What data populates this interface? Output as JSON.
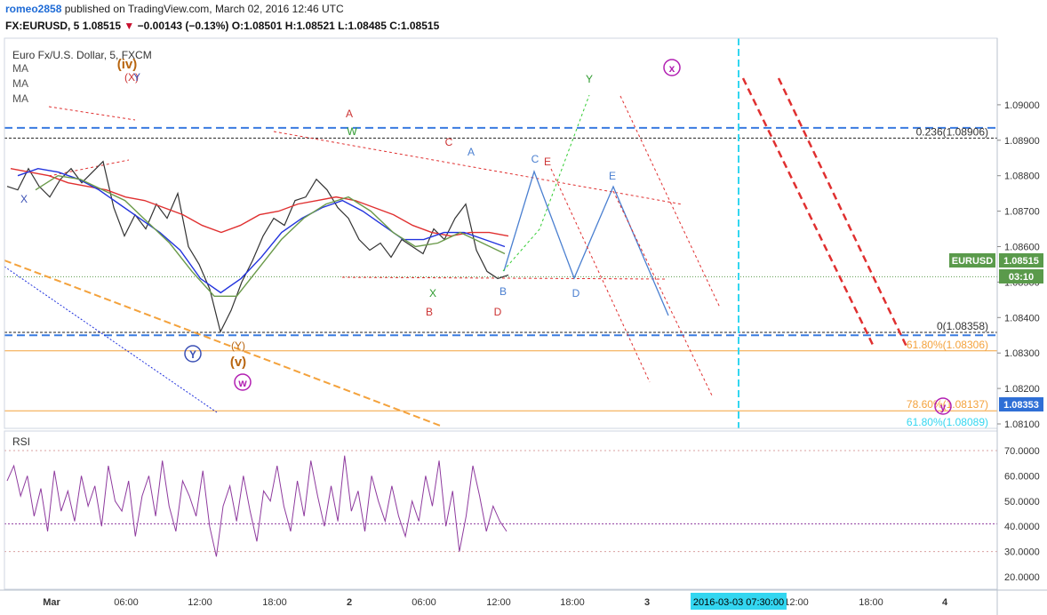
{
  "header": {
    "author": "romeo2858",
    "published_text": "published on TradingView.com, March 02, 2016 12:46 UTC",
    "symbol_line": "FX:EURUSD, 5",
    "last_price": "1.08515",
    "change": "−0.00143 (−0.13%)",
    "ohlc": "O:1.08501 H:1.08521 L:1.08485 C:1.08515"
  },
  "chart_data": [
    {
      "type": "line",
      "title": "Euro Fx/U.S. Dollar, 5, FXCM",
      "indicators": [
        "MA",
        "MA",
        "MA"
      ],
      "ylim": [
        1.081,
        1.091
      ],
      "y_ticks": [
        "1.09000",
        "1.08900",
        "1.08800",
        "1.08700",
        "1.08600",
        "1.08500",
        "1.08400",
        "1.08300",
        "1.08200",
        "1.08100"
      ],
      "x_ticks": [
        "Mar",
        "06:00",
        "12:00",
        "18:00",
        "2",
        "06:00",
        "12:00",
        "18:00",
        "3",
        "12:00",
        "18:00",
        "4"
      ],
      "x_highlight": "2016-03-03 07:30:00",
      "price_tags": [
        {
          "text": "EURUSD",
          "value": "1.08515",
          "color": "#5a9a4b"
        },
        {
          "text": "",
          "value": "03:10",
          "color": "#5a9a4b"
        },
        {
          "text": "",
          "value": "1.08353",
          "color": "#2f6fd6"
        }
      ],
      "levels": [
        {
          "label": "0.236(1.08906)",
          "value": 1.08906,
          "color": "#333333"
        },
        {
          "label": "0(1.08358)",
          "value": 1.08358,
          "color": "#333333"
        },
        {
          "label": "61.80%(1.08306)",
          "value": 1.08306,
          "color": "#f4a23c"
        },
        {
          "label": "78.60%(1.08137)",
          "value": 1.08137,
          "color": "#f4a23c"
        },
        {
          "label": "61.80%(1.08089)",
          "value": 1.08089,
          "color": "#33d6f0"
        }
      ],
      "wave_labels": [
        {
          "text": "(iv)",
          "color": "#b8650f"
        },
        {
          "text": "(X)",
          "color": "#cc3333"
        },
        {
          "text": "Y",
          "color": "#3b50b5"
        },
        {
          "text": "X",
          "color": "#3b50b5"
        },
        {
          "text": "A",
          "color": "#cc3333"
        },
        {
          "text": "W",
          "color": "#2e9a2e"
        },
        {
          "text": "C",
          "color": "#cc3333"
        },
        {
          "text": "A",
          "color": "#4a7fd0"
        },
        {
          "text": "C",
          "color": "#4a7fd0"
        },
        {
          "text": "E",
          "color": "#cc3333"
        },
        {
          "text": "E",
          "color": "#4a7fd0"
        },
        {
          "text": "Y",
          "color": "#2e9a2e"
        },
        {
          "text": "x",
          "color": "#b21fb2"
        },
        {
          "text": "X",
          "color": "#2e9a2e"
        },
        {
          "text": "B",
          "color": "#cc3333"
        },
        {
          "text": "B",
          "color": "#4a7fd0"
        },
        {
          "text": "D",
          "color": "#cc3333"
        },
        {
          "text": "D",
          "color": "#4a7fd0"
        },
        {
          "text": "Y",
          "color": "#3b50b5"
        },
        {
          "text": "(Y)",
          "color": "#b8650f"
        },
        {
          "text": "(v)",
          "color": "#b8650f"
        },
        {
          "text": "w",
          "color": "#b21fb2"
        },
        {
          "text": "y",
          "color": "#b21fb2"
        }
      ],
      "series": [
        {
          "name": "EURUSD",
          "color": "#333333",
          "values": [
            1.0877,
            1.0876,
            1.0882,
            1.0877,
            1.0874,
            1.0879,
            1.0882,
            1.0878,
            1.0881,
            1.0884,
            1.0871,
            1.0863,
            1.0869,
            1.0865,
            1.0872,
            1.0868,
            1.0875,
            1.086,
            1.0855,
            1.0848,
            1.0836,
            1.0842,
            1.085,
            1.0856,
            1.0863,
            1.0868,
            1.0866,
            1.0873,
            1.0874,
            1.0879,
            1.0876,
            1.0871,
            1.0868,
            1.0862,
            1.0859,
            1.0861,
            1.0857,
            1.0862,
            1.086,
            1.0858,
            1.0865,
            1.0862,
            1.0868,
            1.0872,
            1.0859,
            1.0853,
            1.0851,
            1.0852
          ]
        },
        {
          "name": "MA",
          "color": "#e03030",
          "values": [
            1.0882,
            1.0881,
            1.088,
            1.0878,
            1.0877,
            1.0876,
            1.0874,
            1.0873,
            1.0871,
            1.0869,
            1.0866,
            1.0864,
            1.0866,
            1.0869,
            1.087,
            1.0872,
            1.0873,
            1.0874,
            1.0873,
            1.0871,
            1.0869,
            1.0866,
            1.0864,
            1.0863,
            1.0864,
            1.0864,
            1.0863
          ]
        },
        {
          "name": "MA",
          "color": "#2233dd",
          "values": [
            1.088,
            1.0882,
            1.0881,
            1.0879,
            1.0876,
            1.0872,
            1.0868,
            1.0864,
            1.0859,
            1.0851,
            1.0847,
            1.0851,
            1.0857,
            1.0864,
            1.0868,
            1.0871,
            1.0873,
            1.087,
            1.0866,
            1.0862,
            1.0862,
            1.0864,
            1.0864,
            1.0862,
            1.086
          ]
        },
        {
          "name": "MA",
          "color": "#6a9a4a",
          "values": [
            1.0876,
            1.088,
            1.0879,
            1.0876,
            1.0873,
            1.0867,
            1.0861,
            1.0853,
            1.0846,
            1.0846,
            1.0854,
            1.0862,
            1.0868,
            1.0872,
            1.0874,
            1.087,
            1.0864,
            1.086,
            1.0861,
            1.0864,
            1.0861,
            1.0858
          ]
        }
      ]
    },
    {
      "type": "line",
      "title": "RSI",
      "ylim": [
        15,
        72
      ],
      "y_ticks": [
        "70.0000",
        "60.0000",
        "50.0000",
        "40.0000",
        "30.0000",
        "20.0000"
      ],
      "series": [
        {
          "name": "",
          "color": "#8e3a9e",
          "values": [
            58,
            64,
            52,
            60,
            44,
            55,
            38,
            62,
            46,
            54,
            42,
            60,
            48,
            56,
            40,
            64,
            50,
            46,
            58,
            36,
            52,
            60,
            44,
            66,
            48,
            38,
            58,
            52,
            44,
            62,
            40,
            28,
            48,
            56,
            42,
            60,
            46,
            34,
            54,
            50,
            64,
            48,
            38,
            58,
            44,
            66,
            52,
            40,
            56,
            42,
            68,
            46,
            54,
            38,
            60,
            50,
            42,
            56,
            44,
            36,
            50,
            42,
            60,
            48,
            66,
            40,
            54,
            30,
            44,
            64,
            52,
            38,
            48,
            42,
            38
          ]
        },
        {
          "name": "",
          "color": "#8e3a9e",
          "values": [
            41,
            41
          ]
        }
      ]
    }
  ]
}
